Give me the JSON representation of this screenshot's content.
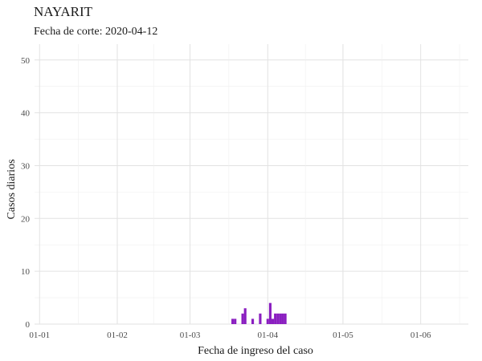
{
  "chart_data": {
    "type": "bar",
    "title": "NAYARIT",
    "subtitle": "Fecha de corte: 2020-04-12",
    "xlabel": "Fecha de ingreso del caso",
    "ylabel": "Casos diarios",
    "x_ticks": [
      {
        "date": "2020-01-01",
        "label": "01-01"
      },
      {
        "date": "2020-02-01",
        "label": "01-02"
      },
      {
        "date": "2020-03-01",
        "label": "01-03"
      },
      {
        "date": "2020-04-01",
        "label": "01-04"
      },
      {
        "date": "2020-05-01",
        "label": "01-05"
      },
      {
        "date": "2020-06-01",
        "label": "01-06"
      }
    ],
    "xlim": [
      "2019-12-30",
      "2020-06-20"
    ],
    "ylim": [
      0,
      53
    ],
    "y_ticks": [
      0,
      10,
      20,
      30,
      40,
      50
    ],
    "grid": true,
    "bar_color": "#8a1ec0",
    "points": [
      {
        "date": "2020-03-18",
        "value": 1
      },
      {
        "date": "2020-03-19",
        "value": 1
      },
      {
        "date": "2020-03-22",
        "value": 2
      },
      {
        "date": "2020-03-23",
        "value": 3
      },
      {
        "date": "2020-03-26",
        "value": 1
      },
      {
        "date": "2020-03-29",
        "value": 2
      },
      {
        "date": "2020-04-01",
        "value": 1
      },
      {
        "date": "2020-04-02",
        "value": 4
      },
      {
        "date": "2020-04-03",
        "value": 1
      },
      {
        "date": "2020-04-04",
        "value": 2
      },
      {
        "date": "2020-04-05",
        "value": 2
      },
      {
        "date": "2020-04-06",
        "value": 2
      },
      {
        "date": "2020-04-07",
        "value": 2
      },
      {
        "date": "2020-04-08",
        "value": 2
      }
    ]
  }
}
